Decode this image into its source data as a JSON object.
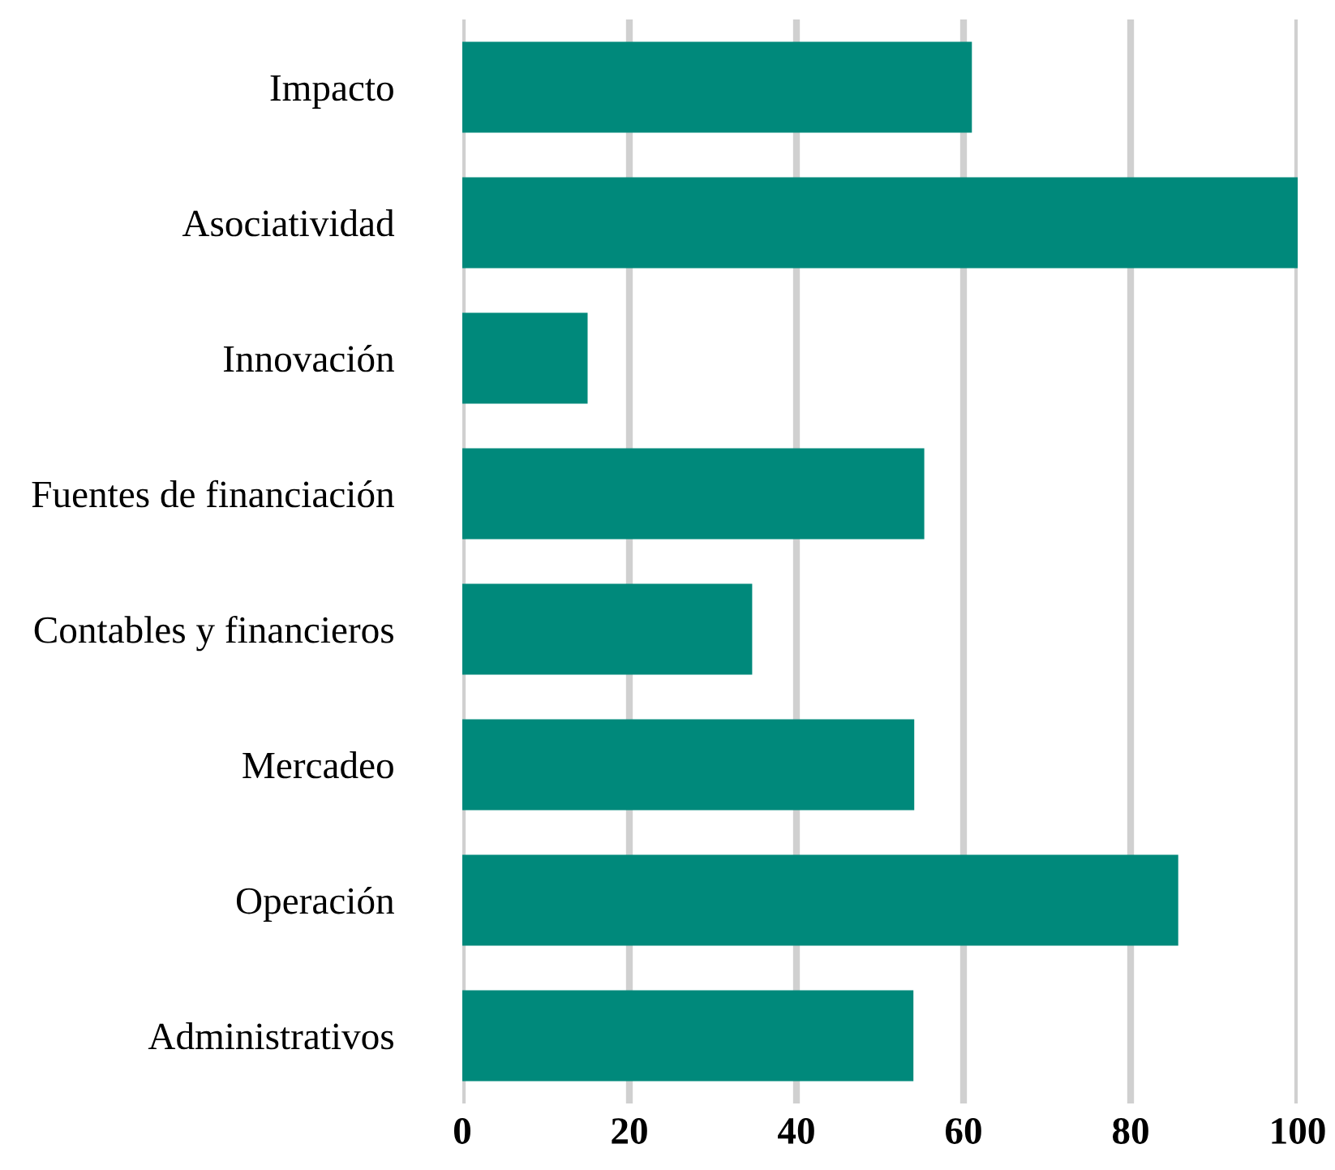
{
  "chart_data": {
    "type": "bar",
    "orientation": "horizontal",
    "categories": [
      "Impacto",
      "Asociatividad",
      "Innovación",
      "Fuentes de financiación",
      "Contables y financieros",
      "Mercadeo",
      "Operación",
      "Administrativos"
    ],
    "values": [
      61,
      100,
      15,
      55.3,
      34.7,
      54.1,
      85.7,
      54
    ],
    "color": "#00897b",
    "xlim": [
      0,
      100
    ],
    "xticks": [
      0,
      20,
      40,
      60,
      80,
      100
    ],
    "grid": "x"
  }
}
